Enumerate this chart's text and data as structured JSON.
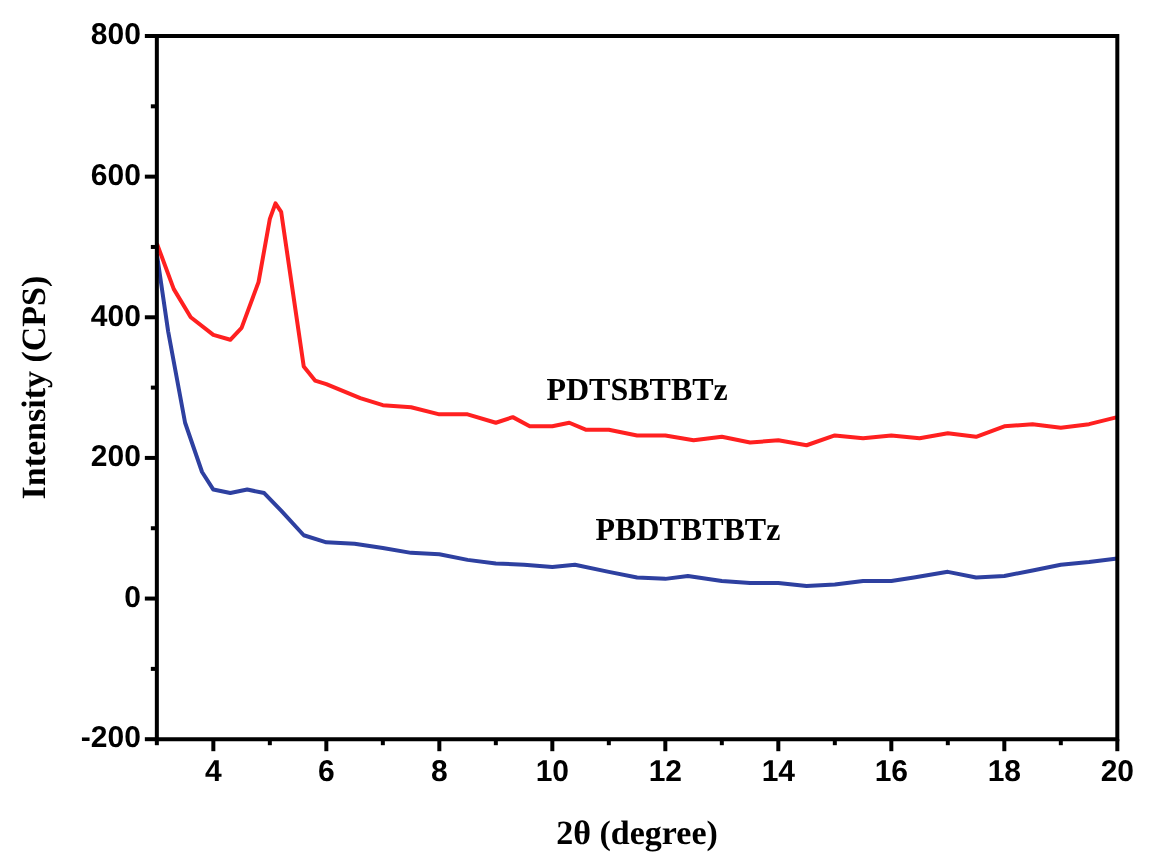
{
  "chart_data": {
    "type": "line",
    "xlabel": "2θ (degree)",
    "ylabel": "Intensity (CPS)",
    "xlim": [
      3,
      20
    ],
    "xticks": [
      4,
      6,
      8,
      10,
      12,
      14,
      16,
      18,
      20
    ],
    "ylim": [
      -200,
      800
    ],
    "yticks": [
      -200,
      0,
      200,
      400,
      600,
      800
    ],
    "grid": false,
    "legend": false,
    "marker": "none",
    "line_style": "solid",
    "series": [
      {
        "name": "PDTSBTBTz",
        "color": "#ff2020",
        "x": [
          3,
          3.3,
          3.6,
          4,
          4.3,
          4.5,
          4.8,
          5,
          5.1,
          5.2,
          5.4,
          5.6,
          5.8,
          6,
          6.3,
          6.6,
          7,
          7.5,
          8,
          8.5,
          9,
          9.3,
          9.6,
          10,
          10.3,
          10.6,
          11,
          11.5,
          12,
          12.5,
          13,
          13.5,
          14,
          14.5,
          15,
          15.5,
          16,
          16.5,
          17,
          17.5,
          18,
          18.5,
          19,
          19.5,
          20
        ],
        "values": [
          505,
          440,
          400,
          375,
          368,
          385,
          450,
          540,
          562,
          550,
          440,
          330,
          310,
          305,
          295,
          285,
          275,
          272,
          262,
          262,
          250,
          258,
          245,
          245,
          250,
          240,
          240,
          232,
          232,
          225,
          230,
          222,
          225,
          218,
          232,
          228,
          232,
          228,
          235,
          230,
          245,
          248,
          243,
          248,
          258
        ]
      },
      {
        "name": "PBDTBTBTz",
        "color": "#2e40a0",
        "x": [
          3,
          3.2,
          3.5,
          3.8,
          4,
          4.3,
          4.6,
          4.9,
          5.2,
          5.6,
          6,
          6.5,
          7,
          7.5,
          8,
          8.5,
          9,
          9.5,
          10,
          10.4,
          11,
          11.5,
          12,
          12.4,
          13,
          13.5,
          14,
          14.5,
          15,
          15.5,
          16,
          16.4,
          17,
          17.5,
          18,
          18.5,
          19,
          19.5,
          20
        ],
        "values": [
          490,
          380,
          250,
          180,
          155,
          150,
          155,
          150,
          125,
          90,
          80,
          78,
          72,
          65,
          63,
          55,
          50,
          48,
          45,
          48,
          38,
          30,
          28,
          32,
          25,
          22,
          22,
          18,
          20,
          25,
          25,
          30,
          38,
          30,
          32,
          40,
          48,
          52,
          57
        ]
      }
    ]
  }
}
